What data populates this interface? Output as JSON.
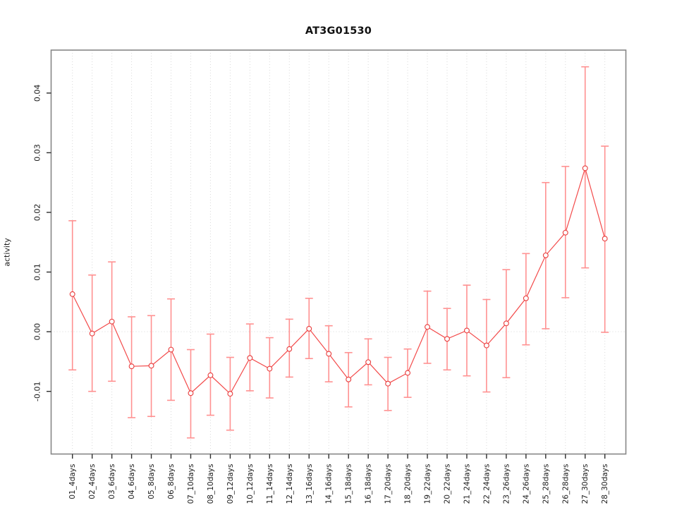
{
  "chart_data": {
    "type": "line",
    "title": "AT3G01530",
    "xlabel": "",
    "ylabel": "activity",
    "categories": [
      "01_4days",
      "02_4days",
      "03_6days",
      "04_6days",
      "05_8days",
      "06_8days",
      "07_10days",
      "08_10days",
      "09_12days",
      "10_12days",
      "11_14days",
      "12_14days",
      "13_16days",
      "14_16days",
      "15_18days",
      "16_18days",
      "17_20days",
      "18_20days",
      "19_22days",
      "20_22days",
      "21_24days",
      "22_24days",
      "23_26days",
      "24_26days",
      "25_28days",
      "26_28days",
      "27_30days",
      "28_30days"
    ],
    "series": [
      {
        "name": "activity",
        "values": [
          0.0063,
          -0.0003,
          0.0017,
          -0.0058,
          -0.0057,
          -0.003,
          -0.0103,
          -0.0073,
          -0.0104,
          -0.0044,
          -0.0062,
          -0.0029,
          0.0005,
          -0.0037,
          -0.008,
          -0.0051,
          -0.0087,
          -0.0069,
          0.0008,
          -0.0012,
          0.0002,
          -0.0023,
          0.0014,
          0.0056,
          0.0128,
          0.0166,
          0.0274,
          0.0156
        ],
        "upper": [
          0.0186,
          0.0095,
          0.0117,
          0.0025,
          0.0027,
          0.0055,
          -0.003,
          -0.0004,
          -0.0043,
          0.0013,
          -0.001,
          0.0021,
          0.0056,
          0.001,
          -0.0035,
          -0.0012,
          -0.0043,
          -0.0029,
          0.0068,
          0.0039,
          0.0078,
          0.0054,
          0.0104,
          0.0131,
          0.025,
          0.0277,
          0.0444,
          0.0311
        ],
        "lower": [
          -0.0064,
          -0.01,
          -0.0083,
          -0.0144,
          -0.0142,
          -0.0115,
          -0.0178,
          -0.014,
          -0.0165,
          -0.0099,
          -0.0111,
          -0.0076,
          -0.0045,
          -0.0084,
          -0.0126,
          -0.0089,
          -0.0132,
          -0.011,
          -0.0053,
          -0.0064,
          -0.0074,
          -0.0101,
          -0.0077,
          -0.0022,
          0.0005,
          0.0057,
          0.0107,
          -0.0001
        ]
      }
    ],
    "ylim": [
      -0.0205,
      0.0472
    ],
    "yticks": [
      -0.01,
      0.0,
      0.01,
      0.02,
      0.03,
      0.04
    ],
    "ytick_labels": [
      "-0.01",
      "0.00",
      "0.01",
      "0.02",
      "0.03",
      "0.04"
    ],
    "grid": {
      "vertical_per_category": true,
      "zero_line": true,
      "style": "dotted"
    },
    "legend": "none",
    "colors": {
      "line": "#f34b4b",
      "point_stroke": "#e83c3c",
      "point_fill": "#ffffff",
      "error_bar": "#ff9191",
      "grid": "#d9d9d9",
      "box": "#878787",
      "tick": "#2e2e2e",
      "text": "#1a1a1a"
    }
  }
}
